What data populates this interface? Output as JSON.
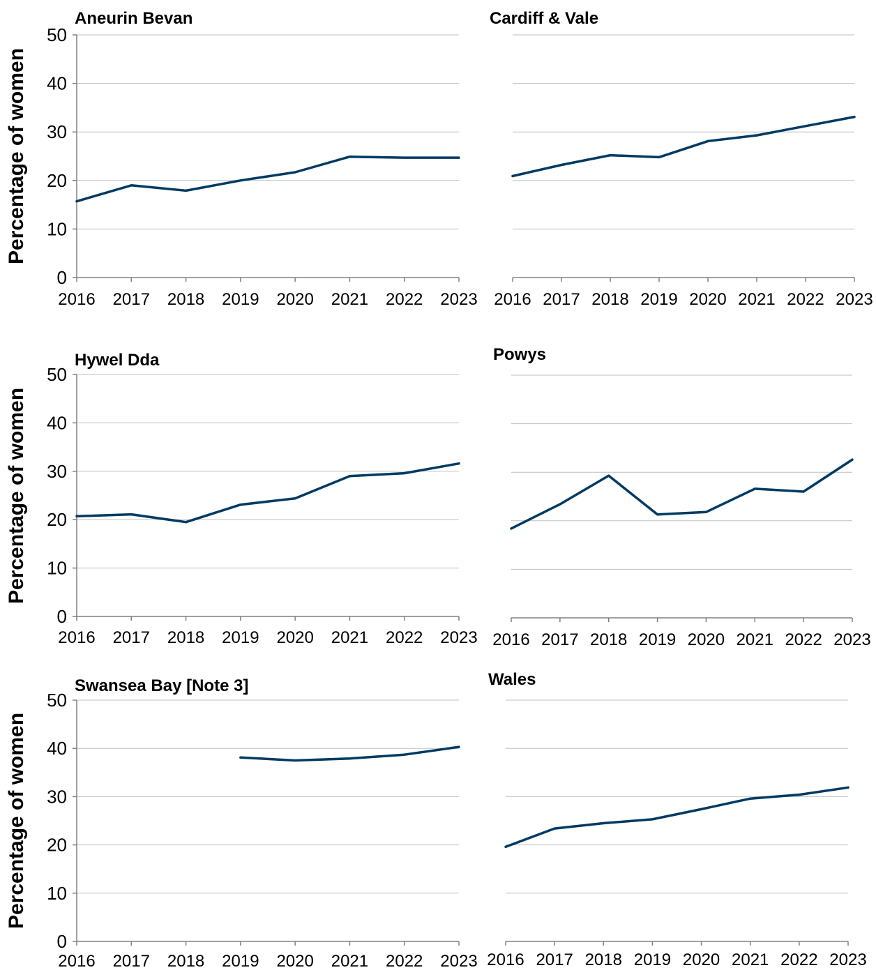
{
  "colors": {
    "series": "#003a63",
    "grid": "#bfbfbf",
    "axis": "#808080"
  },
  "chart_data": [
    {
      "type": "line",
      "title": "Aneurin Bevan",
      "ylabel": "Percentage of women",
      "xlabel": "",
      "x": [
        "2016",
        "2017",
        "2018",
        "2019",
        "2020",
        "2021",
        "2022",
        "2023"
      ],
      "yticks": [
        "0",
        "10",
        "20",
        "30",
        "40",
        "50"
      ],
      "ylim": [
        0,
        50
      ],
      "grid": true,
      "series": [
        {
          "values": [
            15.7,
            19.0,
            17.9,
            20.0,
            21.7,
            24.9,
            24.7,
            24.7
          ]
        }
      ]
    },
    {
      "type": "line",
      "title": "Cardiff & Vale",
      "ylabel": "",
      "xlabel": "",
      "x": [
        "2016",
        "2017",
        "2018",
        "2019",
        "2020",
        "2021",
        "2022",
        "2023"
      ],
      "yticks": [],
      "ylim": [
        0,
        50
      ],
      "grid": true,
      "series": [
        {
          "values": [
            20.9,
            23.2,
            25.2,
            24.8,
            28.1,
            29.3,
            31.2,
            33.1
          ]
        }
      ]
    },
    {
      "type": "line",
      "title": "Hywel Dda",
      "ylabel": "Percentage of women",
      "xlabel": "",
      "x": [
        "2016",
        "2017",
        "2018",
        "2019",
        "2020",
        "2021",
        "2022",
        "2023"
      ],
      "yticks": [
        "0",
        "10",
        "20",
        "30",
        "40",
        "50"
      ],
      "ylim": [
        0,
        50
      ],
      "grid": true,
      "series": [
        {
          "values": [
            20.7,
            21.1,
            19.5,
            23.1,
            24.4,
            29.0,
            29.6,
            31.6
          ]
        }
      ]
    },
    {
      "type": "line",
      "title": "Powys",
      "ylabel": "",
      "xlabel": "",
      "x": [
        "2016",
        "2017",
        "2018",
        "2019",
        "2020",
        "2021",
        "2022",
        "2023"
      ],
      "yticks": [],
      "ylim": [
        0,
        50
      ],
      "grid": true,
      "series": [
        {
          "values": [
            18.4,
            23.4,
            29.3,
            21.3,
            21.8,
            26.6,
            26.0,
            32.6
          ]
        }
      ]
    },
    {
      "type": "line",
      "title": "Swansea Bay [Note 3]",
      "ylabel": "Percentage of women",
      "xlabel": "",
      "x": [
        "2016",
        "2017",
        "2018",
        "2019",
        "2020",
        "2021",
        "2022",
        "2023"
      ],
      "yticks": [
        "0",
        "10",
        "20",
        "30",
        "40",
        "50"
      ],
      "ylim": [
        0,
        50
      ],
      "grid": true,
      "series": [
        {
          "values": [
            null,
            null,
            null,
            38.1,
            37.5,
            37.9,
            38.7,
            40.3
          ]
        }
      ]
    },
    {
      "type": "line",
      "title": "Wales",
      "ylabel": "",
      "xlabel": "",
      "x": [
        "2016",
        "2017",
        "2018",
        "2019",
        "2020",
        "2021",
        "2022",
        "2023"
      ],
      "yticks": [],
      "ylim": [
        0,
        50
      ],
      "grid": true,
      "series": [
        {
          "values": [
            19.6,
            23.4,
            24.5,
            25.3,
            27.4,
            29.6,
            30.4,
            31.9
          ]
        }
      ]
    }
  ]
}
